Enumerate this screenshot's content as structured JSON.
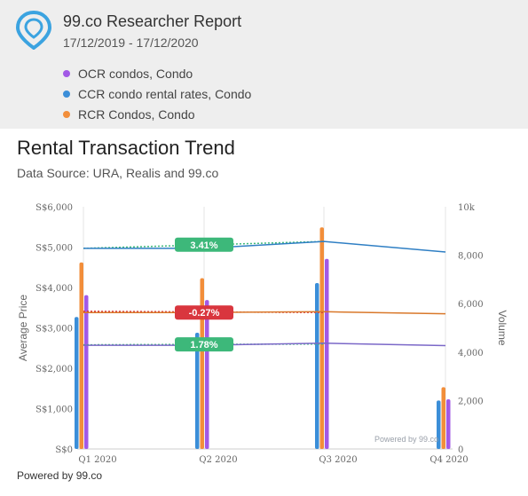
{
  "header": {
    "title": "99.co Researcher Report",
    "dates": "17/12/2019 - 17/12/2020",
    "legend": [
      {
        "label": "OCR condos, Condo",
        "color": "#a259e6"
      },
      {
        "label": "CCR condo rental rates, Condo",
        "color": "#3b8ed8"
      },
      {
        "label": "RCR Condos, Condo",
        "color": "#f28e3a"
      }
    ]
  },
  "section": {
    "title": "Rental Transaction Trend",
    "subtitle": "Data Source: URA, Realis and 99.co"
  },
  "footer": {
    "powered_by": "Powered by 99.co"
  },
  "chart_data": {
    "type": "bar",
    "categories": [
      "Q1 2020",
      "Q2 2020",
      "Q3 2020",
      "Q4 2020"
    ],
    "ylabel_left": "Average Price",
    "ylabel_right": "Volume",
    "yticks_left": [
      "S$0",
      "S$1,000",
      "S$2,000",
      "S$3,000",
      "S$4,000",
      "S$5,000",
      "S$6,000"
    ],
    "yticks_right": [
      "0",
      "2,000",
      "4,000",
      "6,000",
      "8,000",
      "10k"
    ],
    "ylim_left": [
      0,
      6000
    ],
    "ylim_right": [
      0,
      10000
    ],
    "volume_series": [
      {
        "name": "CCR condo rental rates, Condo",
        "color": "#3b8ed8",
        "values": [
          5450,
          4800,
          6850,
          2000
        ]
      },
      {
        "name": "RCR Condos, Condo",
        "color": "#f28e3a",
        "values": [
          7700,
          7050,
          9150,
          2550
        ]
      },
      {
        "name": "OCR condos, Condo",
        "color": "#a259e6",
        "values": [
          6350,
          6150,
          7850,
          2050
        ]
      }
    ],
    "price_series": [
      {
        "name": "CCR condo rental rates, Condo",
        "color": "#2f7fc4",
        "values": [
          4970,
          4970,
          5140,
          4880
        ]
      },
      {
        "name": "RCR Condos, Condo",
        "color": "#d9782a",
        "values": [
          3380,
          3380,
          3400,
          3350
        ]
      },
      {
        "name": "OCR condos, Condo",
        "color": "#7b68c8",
        "values": [
          2570,
          2570,
          2620,
          2560
        ]
      }
    ],
    "annotations": [
      {
        "text": "3.41%",
        "color": "#3db87a",
        "price": 5060,
        "trend_color": "#3db87a",
        "trend": [
          4970,
          5140
        ]
      },
      {
        "text": "-0.27%",
        "color": "#d9363e",
        "price": 3380,
        "trend_color": "#d9363e",
        "trend": [
          3410,
          3380
        ]
      },
      {
        "text": "1.78%",
        "color": "#3db87a",
        "price": 2590,
        "trend_color": "#3db87a",
        "trend": [
          2580,
          2600
        ]
      }
    ],
    "credit": "Powered by 99.co"
  }
}
